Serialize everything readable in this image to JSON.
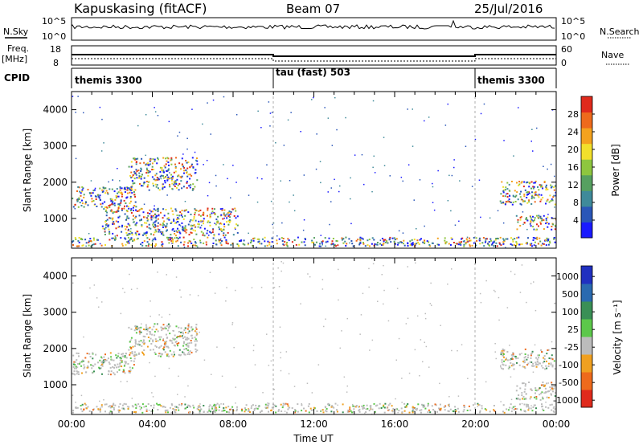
{
  "header": {
    "title": "Kapuskasing (fitACF)",
    "beam": "Beam 07",
    "date": "25/Jul/2016"
  },
  "summary": {
    "nsky_label": "N.Sky",
    "nsky_ticks": [
      "10^5",
      "10^0"
    ],
    "nsearch_label": "N.Search",
    "nsearch_ticks": [
      "10^5",
      "10^0"
    ],
    "freq_label": "Freq.",
    "freq_unit": "[MHz]",
    "freq_ticks": [
      "18",
      "8"
    ],
    "nave_label": "Nave",
    "nave_ticks": [
      "60",
      "0"
    ],
    "cpid_label": "CPID",
    "cpid_segments": [
      {
        "label": "themis 3300",
        "start_hour": 0,
        "end_hour": 10
      },
      {
        "label": "tau (fast) 503",
        "start_hour": 10,
        "end_hour": 20
      },
      {
        "label": "themis 3300",
        "start_hour": 20,
        "end_hour": 24
      }
    ]
  },
  "chart_data": [
    {
      "type": "heatmap",
      "title": "Power",
      "xlabel": "",
      "ylabel": "Slant Range [km]",
      "xlim": [
        0,
        24
      ],
      "ylim": [
        180,
        4500
      ],
      "yticks": [
        "1000",
        "2000",
        "3000",
        "4000"
      ],
      "colorbar": {
        "label": "Power [dB]",
        "range": [
          0,
          32
        ],
        "ticks": [
          "4",
          "8",
          "12",
          "16",
          "20",
          "24",
          "28"
        ],
        "colors": [
          "#1a1aff",
          "#2a56b8",
          "#3f8a9a",
          "#56a060",
          "#8ec63f",
          "#f2e02b",
          "#f4a21e",
          "#ee6a1c",
          "#e02a1c"
        ]
      },
      "echo_regions": [
        {
          "name": "near-range band",
          "start_hour": 0.0,
          "end_hour": 24.0,
          "range_km": [
            250,
            500
          ]
        },
        {
          "name": "early arc",
          "start_hour": 0.0,
          "end_hour": 3.2,
          "range_km": [
            1300,
            1900
          ]
        },
        {
          "name": "rising arc",
          "start_hour": 2.8,
          "end_hour": 6.2,
          "range_km": [
            1800,
            2700
          ]
        },
        {
          "name": "mid-range patches",
          "start_hour": 1.5,
          "end_hour": 8.2,
          "range_km": [
            550,
            1300
          ]
        },
        {
          "name": "evening arc",
          "start_hour": 21.2,
          "end_hour": 24.0,
          "range_km": [
            1400,
            2050
          ]
        },
        {
          "name": "evening low band",
          "start_hour": 22.0,
          "end_hour": 24.0,
          "range_km": [
            700,
            1100
          ]
        }
      ]
    },
    {
      "type": "heatmap",
      "title": "Velocity",
      "xlabel": "Time UT",
      "ylabel": "Slant Range [km]",
      "xlim": [
        0,
        24
      ],
      "ylim": [
        180,
        4500
      ],
      "xticks": [
        "00:00",
        "04:00",
        "08:00",
        "12:00",
        "16:00",
        "20:00",
        "00:00"
      ],
      "yticks": [
        "1000",
        "2000",
        "3000",
        "4000"
      ],
      "colorbar": {
        "label": "Velocity [m s⁻¹]",
        "ticks": [
          "1000",
          "500",
          "100",
          "25",
          "-25",
          "-100",
          "-500",
          "-1000"
        ],
        "colors": [
          "#2030c0",
          "#2a6ab0",
          "#3a8f56",
          "#5cc84a",
          "#bcbcbc",
          "#f0a020",
          "#ee6a1c",
          "#e02a1c"
        ]
      },
      "echo_regions": [
        {
          "name": "near-range band",
          "start_hour": 0.0,
          "end_hour": 24.0,
          "range_km": [
            250,
            500
          ]
        },
        {
          "name": "early arc",
          "start_hour": 0.0,
          "end_hour": 3.2,
          "range_km": [
            1300,
            1900
          ]
        },
        {
          "name": "rising arc",
          "start_hour": 2.8,
          "end_hour": 6.2,
          "range_km": [
            1800,
            2700
          ]
        },
        {
          "name": "evening arc",
          "start_hour": 21.2,
          "end_hour": 24.0,
          "range_km": [
            1450,
            2000
          ]
        },
        {
          "name": "evening low band",
          "start_hour": 22.0,
          "end_hour": 24.0,
          "range_km": [
            600,
            1100
          ]
        }
      ]
    }
  ]
}
